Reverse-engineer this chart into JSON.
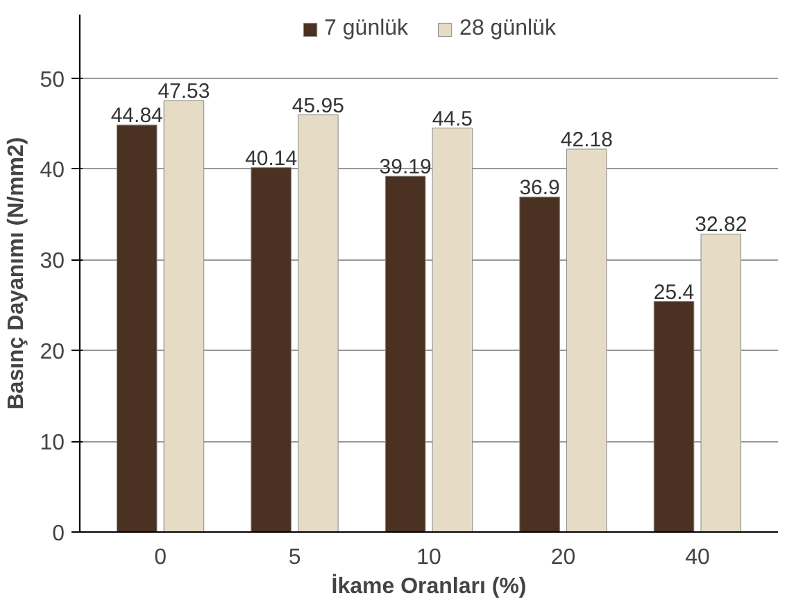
{
  "chart_data": {
    "type": "bar",
    "xlabel": "İkame Oranları (%)",
    "ylabel": "Basınç Dayanımı (N/mm2)",
    "categories": [
      "0",
      "5",
      "10",
      "20",
      "40"
    ],
    "series": [
      {
        "name": "7 günlük",
        "color": "#4b3122",
        "values": [
          44.84,
          40.14,
          39.19,
          36.9,
          25.4
        ]
      },
      {
        "name": "28 günlük",
        "color": "#e6dcc6",
        "values": [
          47.53,
          45.95,
          44.5,
          42.18,
          32.82
        ]
      }
    ],
    "ylim": [
      0,
      57
    ],
    "yticks": [
      0,
      10,
      20,
      30,
      40,
      50
    ],
    "grid": "y",
    "legend": "top",
    "data_labels": true
  }
}
